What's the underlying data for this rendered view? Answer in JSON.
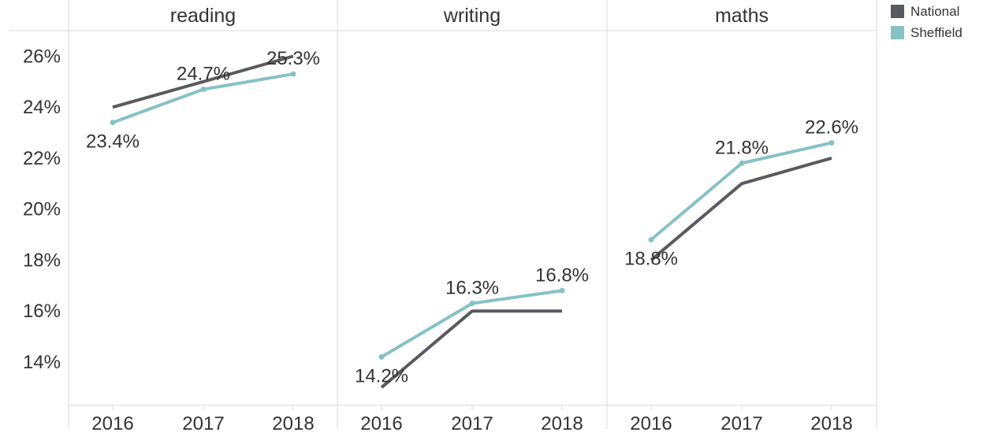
{
  "chart_data": {
    "type": "line",
    "panels": [
      "reading",
      "writing",
      "maths"
    ],
    "categories": [
      "2016",
      "2017",
      "2018"
    ],
    "yticks": [
      "14%",
      "16%",
      "18%",
      "20%",
      "22%",
      "24%",
      "26%"
    ],
    "ylim": [
      12.3,
      27.0
    ],
    "legend": {
      "placement": "top-right",
      "entries": [
        "National",
        "Sheffield"
      ]
    },
    "colors": {
      "National": "#585a60",
      "Sheffield": "#86c1c6"
    },
    "series": [
      {
        "name": "National",
        "values": {
          "reading": [
            24.0,
            25.0,
            26.0
          ],
          "writing": [
            13.0,
            16.0,
            16.0
          ],
          "maths": [
            18.0,
            21.0,
            22.0
          ]
        }
      },
      {
        "name": "Sheffield",
        "values": {
          "reading": [
            23.4,
            24.7,
            25.3
          ],
          "writing": [
            14.2,
            16.3,
            16.8
          ],
          "maths": [
            18.8,
            21.8,
            22.6
          ]
        },
        "labels": {
          "reading": [
            "23.4%",
            "24.7%",
            "25.3%"
          ],
          "writing": [
            "14.2%",
            "16.3%",
            "16.8%"
          ],
          "maths": [
            "18.8%",
            "21.8%",
            "22.6%"
          ]
        }
      }
    ],
    "grid": false
  }
}
